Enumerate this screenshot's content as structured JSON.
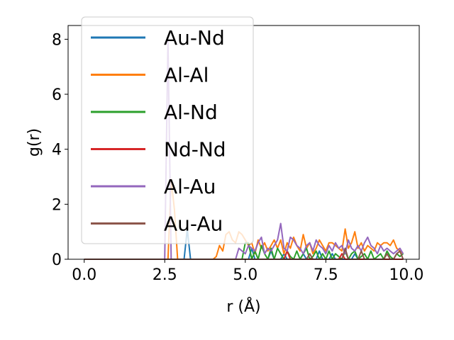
{
  "chart_data": {
    "type": "line",
    "xlabel": "r (Å)",
    "ylabel": "g(r)",
    "xlim": [
      -0.5,
      10.4
    ],
    "ylim": [
      0,
      8.5
    ],
    "xticks": [
      0.0,
      2.5,
      5.0,
      7.5,
      10.0
    ],
    "xtick_labels": [
      "0.0",
      "2.5",
      "5.0",
      "7.5",
      "10.0"
    ],
    "yticks": [
      0,
      2,
      4,
      6,
      8
    ],
    "ytick_labels": [
      "0",
      "2",
      "4",
      "6",
      "8"
    ],
    "grid": false,
    "legend_position": "upper-left",
    "x": [
      0.0,
      0.1,
      0.2,
      0.3,
      0.4,
      0.5,
      0.6,
      0.7,
      0.8,
      0.9,
      1.0,
      1.1,
      1.2,
      1.3,
      1.4,
      1.5,
      1.6,
      1.7,
      1.8,
      1.9,
      2.0,
      2.1,
      2.2,
      2.3,
      2.4,
      2.5,
      2.6,
      2.7,
      2.8,
      2.9,
      3.0,
      3.1,
      3.2,
      3.3,
      3.4,
      3.5,
      3.6,
      3.7,
      3.8,
      3.9,
      4.0,
      4.1,
      4.2,
      4.3,
      4.4,
      4.5,
      4.6,
      4.7,
      4.8,
      4.9,
      5.0,
      5.1,
      5.2,
      5.3,
      5.4,
      5.5,
      5.6,
      5.7,
      5.8,
      5.9,
      6.0,
      6.1,
      6.2,
      6.3,
      6.4,
      6.5,
      6.6,
      6.7,
      6.8,
      6.9,
      7.0,
      7.1,
      7.2,
      7.3,
      7.4,
      7.5,
      7.6,
      7.7,
      7.8,
      7.9,
      8.0,
      8.1,
      8.2,
      8.3,
      8.4,
      8.5,
      8.6,
      8.7,
      8.8,
      8.9,
      9.0,
      9.1,
      9.2,
      9.3,
      9.4,
      9.5,
      9.6,
      9.7,
      9.8,
      9.9
    ],
    "series": [
      {
        "name": "Au-Nd",
        "color": "#1f77b4",
        "values": [
          0,
          0,
          0,
          0,
          0,
          0,
          0,
          0,
          0,
          0,
          0,
          0,
          0,
          0,
          0,
          0,
          0,
          0,
          0,
          0,
          0,
          0,
          0,
          0,
          0,
          0,
          0,
          0,
          0,
          0,
          0,
          0,
          1.1,
          0,
          0,
          0,
          0,
          0,
          0,
          0,
          0,
          0,
          0,
          0,
          0,
          0,
          0,
          0,
          0,
          0,
          0,
          0,
          0.4,
          0,
          0,
          0,
          0,
          0,
          0.3,
          0,
          0,
          0,
          0.2,
          0,
          0,
          0,
          0,
          0,
          0.2,
          0,
          0,
          0,
          0,
          0.3,
          0,
          0,
          0,
          0.2,
          0,
          0,
          0,
          0,
          0,
          0,
          0.2,
          0,
          0,
          0,
          0,
          0,
          0,
          0,
          0,
          0,
          0,
          0,
          0,
          0,
          0,
          0
        ]
      },
      {
        "name": "Al-Al",
        "color": "#ff7f0e",
        "values": [
          0,
          0,
          0,
          0,
          0,
          0,
          0,
          0,
          0,
          0,
          0,
          0,
          0,
          0,
          0,
          0,
          0,
          0,
          0,
          0,
          0,
          0,
          0,
          0,
          0,
          0,
          0,
          2.9,
          1.8,
          0,
          0,
          0,
          0,
          0,
          0,
          0,
          0,
          0,
          0,
          0,
          0,
          0.1,
          0.5,
          0.3,
          0.9,
          1.0,
          0.7,
          0.6,
          1.0,
          0.9,
          0.7,
          0.5,
          0.6,
          0.2,
          0.7,
          0.4,
          0.6,
          0.3,
          0.5,
          0.7,
          0.4,
          0.7,
          0.2,
          0.6,
          0.4,
          0.8,
          0.5,
          0.3,
          0.9,
          0.4,
          0.6,
          0.2,
          0.4,
          0.7,
          0.5,
          0.3,
          0.6,
          0.6,
          0.5,
          0.4,
          0.3,
          1.1,
          0.4,
          0.6,
          1.0,
          0.4,
          0.6,
          0.3,
          0.5,
          0.4,
          0.3,
          0.6,
          0.5,
          0.6,
          0.6,
          0.5,
          0.7,
          0.4,
          0.3,
          0.2
        ]
      },
      {
        "name": "Al-Nd",
        "color": "#2ca02c",
        "values": [
          0,
          0,
          0,
          0,
          0,
          0,
          0,
          0,
          0,
          0,
          0,
          0,
          0,
          0,
          0,
          0,
          0,
          0,
          0,
          0,
          0,
          0,
          0,
          0,
          0,
          0,
          0,
          0,
          0,
          0,
          0,
          0,
          0,
          0,
          0,
          0,
          0,
          0,
          0,
          0,
          0,
          0,
          0,
          0,
          0,
          0,
          0,
          0,
          0,
          0,
          0.6,
          0.6,
          0,
          0.3,
          0,
          0.5,
          0.2,
          0,
          0.4,
          0,
          0.4,
          0.2,
          0,
          0.3,
          0.1,
          0,
          0.3,
          0,
          0.2,
          0.4,
          0,
          0.1,
          0.3,
          0,
          0.2,
          0,
          0.3,
          0,
          0.2,
          0.1,
          0,
          0.3,
          0,
          0.2,
          0.3,
          0,
          0.1,
          0.2,
          0,
          0.3,
          0,
          0.1,
          0.2,
          0,
          0.3,
          0.1,
          0,
          0.2,
          0.1,
          0.2
        ]
      },
      {
        "name": "Nd-Nd",
        "color": "#d62728",
        "values": [
          0,
          0,
          0,
          0,
          0,
          0,
          0,
          0,
          0,
          0,
          0,
          0,
          0,
          0,
          0,
          0,
          0,
          0,
          0,
          0,
          0,
          0,
          0,
          0,
          0,
          0,
          0,
          0,
          0,
          0,
          0,
          0,
          0,
          0,
          0,
          0,
          0,
          0,
          0,
          0,
          0,
          0,
          0,
          0,
          0,
          0,
          0,
          0,
          0,
          0,
          0,
          0,
          0,
          0,
          0,
          0,
          0,
          0,
          0,
          0,
          0,
          0,
          0,
          0.3,
          0,
          0,
          0,
          0,
          0,
          0,
          0,
          0,
          0,
          0,
          0,
          0,
          0,
          0,
          0,
          0,
          0.2,
          0,
          0,
          0,
          0,
          0,
          0,
          0,
          0,
          0,
          0,
          0,
          0,
          0,
          0,
          0,
          0,
          0,
          0,
          0
        ]
      },
      {
        "name": "Al-Au",
        "color": "#9467bd",
        "values": [
          0,
          0,
          0,
          0,
          0,
          0,
          0,
          0,
          0,
          0,
          0,
          0,
          0,
          0,
          0,
          0,
          0,
          0,
          0,
          0,
          0,
          0,
          0,
          0,
          0,
          0,
          8.0,
          0,
          0,
          0,
          0,
          0,
          0,
          0,
          0,
          0,
          0,
          0,
          0,
          0,
          0,
          0,
          0,
          0,
          0,
          0,
          0,
          0,
          0.4,
          0.3,
          0.2,
          0.5,
          0.4,
          0.3,
          0.6,
          0.8,
          0.2,
          0.4,
          0.3,
          0.5,
          0.7,
          1.3,
          0.4,
          0.3,
          0.8,
          0.7,
          0.5,
          0.4,
          0.2,
          0.5,
          0.6,
          0.3,
          0.7,
          0.5,
          0.4,
          0.2,
          0.5,
          0.3,
          0.6,
          0.4,
          0.5,
          0.2,
          0.7,
          0.4,
          0.3,
          0.5,
          0.3,
          0.6,
          0.8,
          0.5,
          0.4,
          0.2,
          0.5,
          0.3,
          0.4,
          0.3,
          0.2,
          0.3,
          0.4,
          0.2
        ]
      },
      {
        "name": "Au-Au",
        "color": "#8c564b",
        "values": [
          0,
          0,
          0,
          0,
          0,
          0,
          0,
          0,
          0,
          0,
          0,
          0,
          0,
          0,
          0,
          0,
          0,
          0,
          0,
          0,
          0,
          0,
          0,
          0,
          0,
          0,
          0,
          0,
          0,
          0,
          0,
          0,
          0,
          0,
          0,
          0,
          0,
          0,
          0,
          0,
          0,
          0,
          0,
          0,
          0,
          0,
          0,
          0,
          0,
          0,
          0,
          0,
          0,
          0,
          0,
          0,
          0,
          0,
          0,
          0,
          0,
          0,
          0,
          0,
          0,
          0,
          0,
          0,
          0,
          0,
          0.2,
          0,
          0,
          0,
          0,
          0,
          0,
          0,
          0,
          0,
          0,
          0.4,
          0,
          0,
          0,
          0,
          0.3,
          0,
          0,
          0,
          0,
          0,
          0,
          0,
          0.2,
          0,
          0,
          0.2,
          0.3,
          0
        ]
      }
    ]
  }
}
